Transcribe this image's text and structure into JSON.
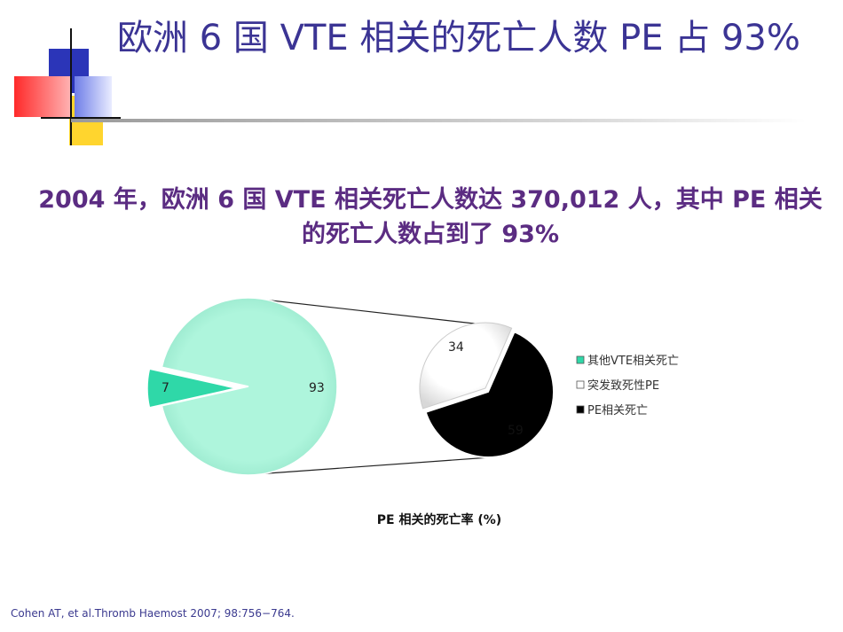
{
  "slide": {
    "title": "欧洲 6 国 VTE 相关的死亡人数 PE 占 93%",
    "subtitle": "2004 年，欧洲 6 国 VTE 相关死亡人数达 370,012 人，其中 PE 相关的死亡人数占到了 93%",
    "citation": "Cohen AT, et al.Thromb Haemost 2007; 98:756−764.",
    "chart_caption": "PE 相关的死亡率 (%)"
  },
  "colors": {
    "title": "#3b3494",
    "subtitle": "#5b2c82",
    "pie_main": "#aef5dc",
    "pie_other": "#2fd8a8",
    "sudden_pe": "#ffffff",
    "pe_death": "#000000"
  },
  "chart_data": [
    {
      "type": "pie",
      "labels": [
        "其他VTE相关死亡",
        ""
      ],
      "values": [
        7,
        93
      ],
      "data_labels": [
        "7",
        "93"
      ]
    },
    {
      "type": "pie",
      "labels": [
        "突发致死性PE",
        "PE相关死亡"
      ],
      "values": [
        34,
        59
      ],
      "data_labels": [
        "34",
        "59"
      ]
    }
  ],
  "legend": {
    "placement": "right",
    "items": [
      {
        "label": "其他VTE相关死亡",
        "color": "#2fd8a8"
      },
      {
        "label": "突发致死性PE",
        "color": "#ffffff"
      },
      {
        "label": "PE相关死亡",
        "color": "#000000"
      }
    ]
  }
}
